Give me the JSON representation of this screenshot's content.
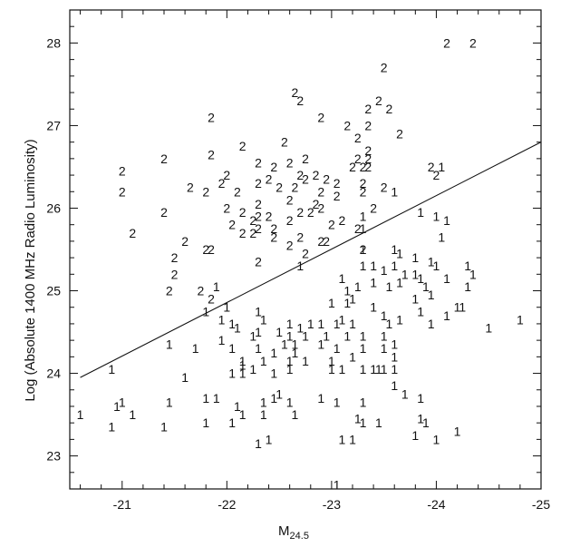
{
  "chart_data": {
    "type": "scatter",
    "title": "",
    "xlabel": "M",
    "xlabel_subscript": "24.5",
    "ylabel": "Log (Absolute 1400 MHz Radio Luminosity)",
    "xlim": [
      -20.5,
      -25
    ],
    "ylim": [
      22.6,
      28.4
    ],
    "x_ticks": [
      -21,
      -22,
      -23,
      -24,
      -25
    ],
    "y_ticks": [
      23,
      24,
      25,
      26,
      27,
      28
    ],
    "x_tick_labels": [
      "-21",
      "-22",
      "-23",
      "-24",
      "-25"
    ],
    "y_tick_labels": [
      "23",
      "24",
      "25",
      "26",
      "27",
      "28"
    ],
    "grid": false,
    "legend": "none",
    "line": {
      "x": [
        -20.6,
        -25.0
      ],
      "y": [
        23.95,
        26.8
      ]
    },
    "series": [
      {
        "marker": "2",
        "points": [
          [
            -24.1,
            28.0
          ],
          [
            -24.35,
            28.0
          ],
          [
            -23.5,
            27.7
          ],
          [
            -22.65,
            27.4
          ],
          [
            -22.7,
            27.3
          ],
          [
            -23.35,
            27.2
          ],
          [
            -23.45,
            27.3
          ],
          [
            -23.55,
            27.2
          ],
          [
            -21.85,
            27.1
          ],
          [
            -22.9,
            27.1
          ],
          [
            -23.15,
            27.0
          ],
          [
            -23.35,
            27.0
          ],
          [
            -23.25,
            26.85
          ],
          [
            -23.65,
            26.9
          ],
          [
            -22.15,
            26.75
          ],
          [
            -22.55,
            26.8
          ],
          [
            -23.35,
            26.7
          ],
          [
            -21.85,
            26.65
          ],
          [
            -22.45,
            26.5
          ],
          [
            -22.6,
            26.55
          ],
          [
            -22.75,
            26.6
          ],
          [
            -23.25,
            26.6
          ],
          [
            -23.35,
            26.6
          ],
          [
            -23.35,
            26.5
          ],
          [
            -21.0,
            26.45
          ],
          [
            -21.4,
            26.6
          ],
          [
            -22.3,
            26.55
          ],
          [
            -22.7,
            26.4
          ],
          [
            -22.85,
            26.4
          ],
          [
            -23.2,
            26.5
          ],
          [
            -23.3,
            26.5
          ],
          [
            -23.95,
            26.5
          ],
          [
            -21.95,
            26.3
          ],
          [
            -22.0,
            26.4
          ],
          [
            -22.4,
            26.35
          ],
          [
            -22.75,
            26.35
          ],
          [
            -22.95,
            26.35
          ],
          [
            -23.05,
            26.3
          ],
          [
            -23.3,
            26.3
          ],
          [
            -23.5,
            26.25
          ],
          [
            -24.0,
            26.4
          ],
          [
            -21.0,
            26.2
          ],
          [
            -21.65,
            26.25
          ],
          [
            -21.8,
            26.2
          ],
          [
            -22.1,
            26.2
          ],
          [
            -22.3,
            26.3
          ],
          [
            -22.5,
            26.25
          ],
          [
            -22.65,
            26.25
          ],
          [
            -22.9,
            26.2
          ],
          [
            -23.05,
            26.15
          ],
          [
            -23.3,
            26.2
          ],
          [
            -22.0,
            26.0
          ],
          [
            -22.3,
            26.05
          ],
          [
            -22.6,
            26.1
          ],
          [
            -22.85,
            26.05
          ],
          [
            -23.4,
            26.0
          ],
          [
            -21.4,
            25.95
          ],
          [
            -22.15,
            25.95
          ],
          [
            -22.3,
            25.9
          ],
          [
            -22.4,
            25.9
          ],
          [
            -22.7,
            25.95
          ],
          [
            -22.8,
            25.95
          ],
          [
            -22.9,
            26.0
          ],
          [
            -22.05,
            25.8
          ],
          [
            -22.25,
            25.85
          ],
          [
            -22.3,
            25.75
          ],
          [
            -22.45,
            25.75
          ],
          [
            -22.6,
            25.85
          ],
          [
            -23.0,
            25.8
          ],
          [
            -23.1,
            25.85
          ],
          [
            -23.25,
            25.75
          ],
          [
            -21.1,
            25.7
          ],
          [
            -22.15,
            25.7
          ],
          [
            -22.25,
            25.7
          ],
          [
            -22.45,
            25.65
          ],
          [
            -22.7,
            25.65
          ],
          [
            -22.95,
            25.6
          ],
          [
            -21.6,
            25.6
          ],
          [
            -22.6,
            25.55
          ],
          [
            -22.9,
            25.6
          ],
          [
            -23.3,
            25.5
          ],
          [
            -21.8,
            25.5
          ],
          [
            -21.85,
            25.5
          ],
          [
            -22.75,
            25.45
          ],
          [
            -21.5,
            25.4
          ],
          [
            -22.3,
            25.35
          ],
          [
            -21.5,
            25.2
          ],
          [
            -21.45,
            25.0
          ],
          [
            -21.75,
            25.0
          ],
          [
            -21.85,
            24.9
          ]
        ]
      },
      {
        "marker": "1",
        "points": [
          [
            -24.05,
            26.5
          ],
          [
            -23.6,
            26.2
          ],
          [
            -23.85,
            25.95
          ],
          [
            -24.0,
            25.9
          ],
          [
            -24.1,
            25.85
          ],
          [
            -23.3,
            25.9
          ],
          [
            -23.3,
            25.75
          ],
          [
            -23.3,
            25.5
          ],
          [
            -24.05,
            25.65
          ],
          [
            -22.7,
            25.3
          ],
          [
            -23.6,
            25.5
          ],
          [
            -23.65,
            25.45
          ],
          [
            -23.8,
            25.4
          ],
          [
            -23.95,
            25.35
          ],
          [
            -24.0,
            25.3
          ],
          [
            -24.3,
            25.3
          ],
          [
            -23.3,
            25.3
          ],
          [
            -23.4,
            25.3
          ],
          [
            -23.5,
            25.25
          ],
          [
            -23.6,
            25.3
          ],
          [
            -23.7,
            25.2
          ],
          [
            -23.8,
            25.2
          ],
          [
            -23.85,
            25.15
          ],
          [
            -24.35,
            25.2
          ],
          [
            -23.1,
            25.15
          ],
          [
            -23.25,
            25.05
          ],
          [
            -23.4,
            25.1
          ],
          [
            -23.55,
            25.05
          ],
          [
            -23.65,
            25.1
          ],
          [
            -23.9,
            25.05
          ],
          [
            -24.1,
            25.15
          ],
          [
            -24.3,
            25.05
          ],
          [
            -23.15,
            25.0
          ],
          [
            -23.2,
            24.9
          ],
          [
            -23.8,
            24.9
          ],
          [
            -23.95,
            24.95
          ],
          [
            -21.9,
            25.05
          ],
          [
            -22.0,
            24.8
          ],
          [
            -23.0,
            24.85
          ],
          [
            -23.15,
            24.85
          ],
          [
            -23.4,
            24.8
          ],
          [
            -23.5,
            24.7
          ],
          [
            -23.65,
            24.65
          ],
          [
            -23.85,
            24.75
          ],
          [
            -24.1,
            24.7
          ],
          [
            -24.2,
            24.8
          ],
          [
            -24.25,
            24.8
          ],
          [
            -21.8,
            24.75
          ],
          [
            -21.95,
            24.65
          ],
          [
            -22.05,
            24.6
          ],
          [
            -22.1,
            24.55
          ],
          [
            -22.3,
            24.75
          ],
          [
            -22.35,
            24.65
          ],
          [
            -22.6,
            24.6
          ],
          [
            -22.7,
            24.55
          ],
          [
            -22.8,
            24.6
          ],
          [
            -22.9,
            24.6
          ],
          [
            -23.05,
            24.6
          ],
          [
            -23.1,
            24.65
          ],
          [
            -23.2,
            24.6
          ],
          [
            -23.55,
            24.6
          ],
          [
            -23.95,
            24.6
          ],
          [
            -24.5,
            24.55
          ],
          [
            -24.8,
            24.65
          ],
          [
            -21.95,
            24.4
          ],
          [
            -22.25,
            24.45
          ],
          [
            -22.3,
            24.5
          ],
          [
            -22.5,
            24.5
          ],
          [
            -22.6,
            24.45
          ],
          [
            -22.75,
            24.45
          ],
          [
            -22.95,
            24.45
          ],
          [
            -23.15,
            24.45
          ],
          [
            -23.3,
            24.45
          ],
          [
            -23.5,
            24.45
          ],
          [
            -21.45,
            24.35
          ],
          [
            -21.7,
            24.3
          ],
          [
            -22.05,
            24.3
          ],
          [
            -22.3,
            24.3
          ],
          [
            -22.55,
            24.35
          ],
          [
            -22.65,
            24.35
          ],
          [
            -22.9,
            24.35
          ],
          [
            -23.05,
            24.3
          ],
          [
            -23.3,
            24.3
          ],
          [
            -23.5,
            24.3
          ],
          [
            -23.6,
            24.35
          ],
          [
            -22.45,
            24.25
          ],
          [
            -22.65,
            24.25
          ],
          [
            -23.2,
            24.2
          ],
          [
            -23.6,
            24.2
          ],
          [
            -22.15,
            24.15
          ],
          [
            -22.35,
            24.15
          ],
          [
            -22.6,
            24.15
          ],
          [
            -22.75,
            24.15
          ],
          [
            -23.0,
            24.15
          ],
          [
            -22.15,
            24.1
          ],
          [
            -22.25,
            24.05
          ],
          [
            -22.45,
            24.0
          ],
          [
            -22.6,
            24.05
          ],
          [
            -23.0,
            24.05
          ],
          [
            -23.1,
            24.05
          ],
          [
            -23.3,
            24.05
          ],
          [
            -23.4,
            24.05
          ],
          [
            -23.45,
            24.05
          ],
          [
            -23.5,
            24.05
          ],
          [
            -23.6,
            24.05
          ],
          [
            -20.9,
            24.05
          ],
          [
            -21.6,
            23.95
          ],
          [
            -22.05,
            24.0
          ],
          [
            -22.15,
            24.0
          ],
          [
            -23.3,
            23.65
          ],
          [
            -23.6,
            23.85
          ],
          [
            -23.7,
            23.75
          ],
          [
            -23.85,
            23.7
          ],
          [
            -21.0,
            23.65
          ],
          [
            -21.45,
            23.65
          ],
          [
            -21.8,
            23.7
          ],
          [
            -21.9,
            23.7
          ],
          [
            -22.1,
            23.6
          ],
          [
            -22.35,
            23.65
          ],
          [
            -22.45,
            23.7
          ],
          [
            -22.5,
            23.75
          ],
          [
            -22.6,
            23.65
          ],
          [
            -22.9,
            23.7
          ],
          [
            -23.05,
            23.65
          ],
          [
            -20.6,
            23.5
          ],
          [
            -20.95,
            23.6
          ],
          [
            -21.1,
            23.5
          ],
          [
            -22.15,
            23.5
          ],
          [
            -22.35,
            23.5
          ],
          [
            -22.65,
            23.5
          ],
          [
            -23.25,
            23.45
          ],
          [
            -23.3,
            23.4
          ],
          [
            -23.45,
            23.4
          ],
          [
            -23.85,
            23.45
          ],
          [
            -23.9,
            23.4
          ],
          [
            -20.9,
            23.35
          ],
          [
            -21.4,
            23.35
          ],
          [
            -21.8,
            23.4
          ],
          [
            -22.05,
            23.4
          ],
          [
            -23.1,
            23.2
          ],
          [
            -23.2,
            23.2
          ],
          [
            -23.8,
            23.25
          ],
          [
            -24.0,
            23.2
          ],
          [
            -24.2,
            23.3
          ],
          [
            -22.3,
            23.15
          ],
          [
            -22.4,
            23.2
          ],
          [
            -23.05,
            22.65
          ]
        ]
      }
    ]
  }
}
